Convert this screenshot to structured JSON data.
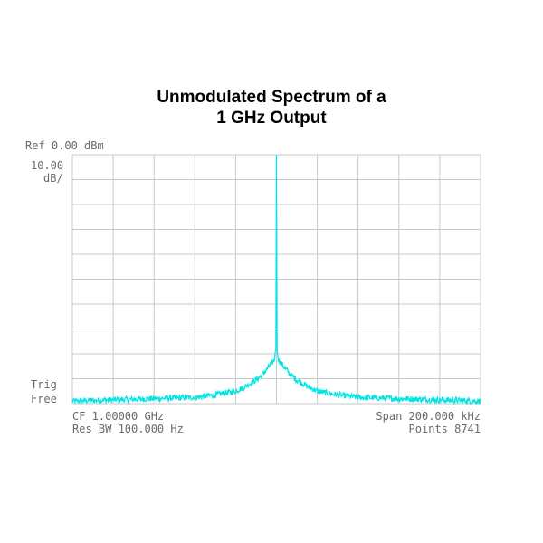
{
  "title_line1": "Unmodulated Spectrum of a",
  "title_line2": "1 GHz Output",
  "ref_level": "Ref 0.00 dBm",
  "scale_value": "10.00",
  "scale_unit": "dB/",
  "trig_label": "Trig",
  "trig_value": "Free",
  "center_freq": "CF 1.00000 GHz",
  "span": "Span  200.000 kHz",
  "res_bw": "Res BW 100.000  Hz",
  "points": "Points 8741",
  "colors": {
    "trace": "#00e5e5",
    "grid": "#c8c8c8",
    "text": "#6a6a6a"
  },
  "chart_data": {
    "type": "line",
    "title": "Unmodulated Spectrum of a 1 GHz Output",
    "xlabel": "",
    "ylabel": "",
    "x_unit": "kHz offset from 1.00000 GHz",
    "xlim": [
      -100,
      100
    ],
    "ylim": [
      -100,
      0
    ],
    "grid": true,
    "x_divisions": 10,
    "y_divisions": 10,
    "series": [
      {
        "x": [
          -100,
          -80,
          -60,
          -40,
          -30,
          -20,
          -15,
          -10,
          -7,
          -5,
          -3,
          -2,
          -1,
          -0.3,
          0,
          0.3,
          1,
          2,
          3,
          5,
          7,
          10,
          15,
          20,
          30,
          40,
          60,
          80,
          100
        ],
        "y": [
          -99,
          -98.5,
          -98,
          -97.5,
          -96.5,
          -95,
          -93,
          -90.5,
          -88.5,
          -86.5,
          -84.5,
          -83.5,
          -82.5,
          -78,
          0,
          -78,
          -82.5,
          -83.5,
          -84.5,
          -86.5,
          -88.5,
          -90.5,
          -93,
          -95,
          -96.5,
          -97.5,
          -98,
          -98.5,
          -99
        ]
      }
    ]
  }
}
